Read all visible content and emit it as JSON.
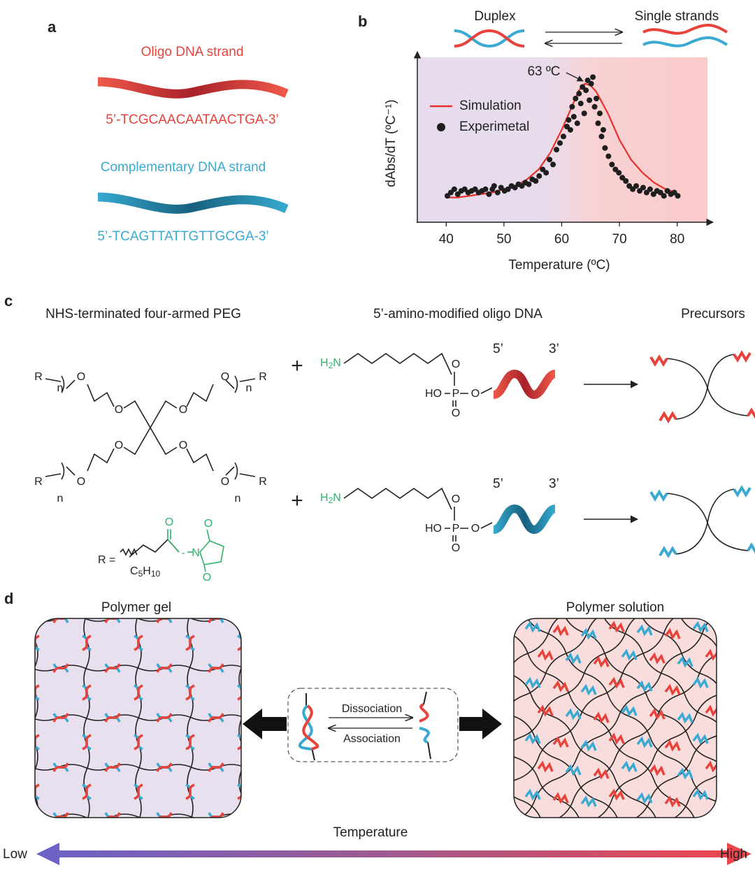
{
  "panel_labels": [
    "a",
    "b",
    "c",
    "d"
  ],
  "panel_a": {
    "oligo_title": "Oligo DNA strand",
    "oligo_sequence": "5’-TCGCAACAATAACTGA-3’",
    "complementary_title": "Complementary DNA strand",
    "complementary_sequence": "5’-TCAGTTATTGTTGCGA-3’"
  },
  "chart_data": {
    "type": "line",
    "header": {
      "duplex": "Duplex",
      "single_strands": "Single strands"
    },
    "annotation": "63 ºC",
    "xlabel": "Temperature (ºC)",
    "ylabel": "dAbs/dT (ºC⁻¹)",
    "xlim": [
      35,
      85
    ],
    "xticks": [
      40,
      50,
      60,
      70,
      80
    ],
    "ylim": [
      0,
      1
    ],
    "legend": "upper left",
    "series": [
      {
        "name": "Simulation",
        "type": "line",
        "color": "#e8302a",
        "x": [
          40,
          42,
          44,
          46,
          48,
          50,
          52,
          54,
          56,
          58,
          60,
          62,
          63,
          64,
          65,
          66,
          68,
          70,
          72,
          74,
          76,
          78,
          80
        ],
        "values": [
          0.15,
          0.15,
          0.16,
          0.17,
          0.18,
          0.2,
          0.22,
          0.26,
          0.32,
          0.42,
          0.56,
          0.72,
          0.8,
          0.84,
          0.83,
          0.79,
          0.66,
          0.5,
          0.38,
          0.3,
          0.24,
          0.2,
          0.18
        ]
      },
      {
        "name": "Experimetal",
        "type": "scatter",
        "color": "#1e1e1e",
        "x": [
          40.2,
          40.8,
          41.4,
          42,
          42.6,
          43.2,
          43.8,
          44.4,
          45,
          45.6,
          46.2,
          46.8,
          47.4,
          48,
          48.3,
          48.9,
          49.5,
          50.1,
          50.7,
          51.3,
          51.9,
          52.5,
          53.1,
          53.7,
          54.3,
          54.9,
          55.5,
          56.1,
          56.7,
          57.3,
          57.9,
          58.5,
          59.1,
          59.7,
          60.3,
          60.9,
          61.2,
          61.5,
          61.8,
          62.1,
          62.4,
          62.7,
          63,
          63.3,
          63.6,
          63.9,
          64.2,
          64.5,
          64.8,
          65.1,
          65.4,
          65.7,
          66,
          66.3,
          66.6,
          66.9,
          67.2,
          67.5,
          68.1,
          68.7,
          69.3,
          69.9,
          70.5,
          71.1,
          71.7,
          72.3,
          72.9,
          73.5,
          74.1,
          74.7,
          75.3,
          75.9,
          76.5,
          77.1,
          77.7,
          78.3,
          78.9,
          79.5,
          80.1
        ],
        "values": [
          0.16,
          0.18,
          0.2,
          0.17,
          0.19,
          0.2,
          0.18,
          0.19,
          0.2,
          0.18,
          0.19,
          0.2,
          0.17,
          0.2,
          0.22,
          0.18,
          0.21,
          0.19,
          0.2,
          0.22,
          0.21,
          0.23,
          0.22,
          0.24,
          0.23,
          0.26,
          0.25,
          0.28,
          0.32,
          0.3,
          0.38,
          0.35,
          0.44,
          0.48,
          0.52,
          0.58,
          0.62,
          0.56,
          0.7,
          0.64,
          0.75,
          0.6,
          0.78,
          0.72,
          0.82,
          0.66,
          0.8,
          0.86,
          0.74,
          0.84,
          0.88,
          0.7,
          0.75,
          0.6,
          0.66,
          0.52,
          0.56,
          0.45,
          0.4,
          0.35,
          0.32,
          0.3,
          0.27,
          0.25,
          0.22,
          0.2,
          0.22,
          0.19,
          0.21,
          0.18,
          0.2,
          0.17,
          0.19,
          0.18,
          0.16,
          0.19,
          0.17,
          0.18,
          0.16
        ]
      }
    ]
  },
  "panel_c": {
    "titles": [
      "NHS-terminated four-armed PEG",
      "5’-amino-modified oligo DNA",
      "Precursors"
    ],
    "peg_labels": [
      "R",
      "n",
      "O",
      "O",
      "O",
      "O",
      "n",
      "R",
      "O",
      "O",
      "R",
      "n",
      "O",
      "O",
      "n",
      "R"
    ],
    "r_prefix": "R =",
    "r_group": [
      "C",
      "5",
      "H",
      "10"
    ],
    "nhs_labels": [
      "O",
      "O",
      "N",
      "O"
    ],
    "rows": [
      {
        "plus": "+",
        "amine": [
          "H",
          "2",
          "N"
        ],
        "phosphate": [
          "O",
          "HO",
          "P",
          "O",
          "O"
        ],
        "ends": [
          "5’",
          "3’"
        ]
      },
      {
        "plus": "+",
        "amine": [
          "H",
          "2",
          "N"
        ],
        "phosphate": [
          "O",
          "HO",
          "P",
          "O",
          "O"
        ],
        "ends": [
          "5’",
          "3’"
        ]
      }
    ]
  },
  "panel_d": {
    "gel": "Polymer gel",
    "solution": "Polymer solution",
    "dissociation": "Dissociation",
    "association": "Association",
    "temperature": "Temperature",
    "low": "Low",
    "high": "High"
  }
}
